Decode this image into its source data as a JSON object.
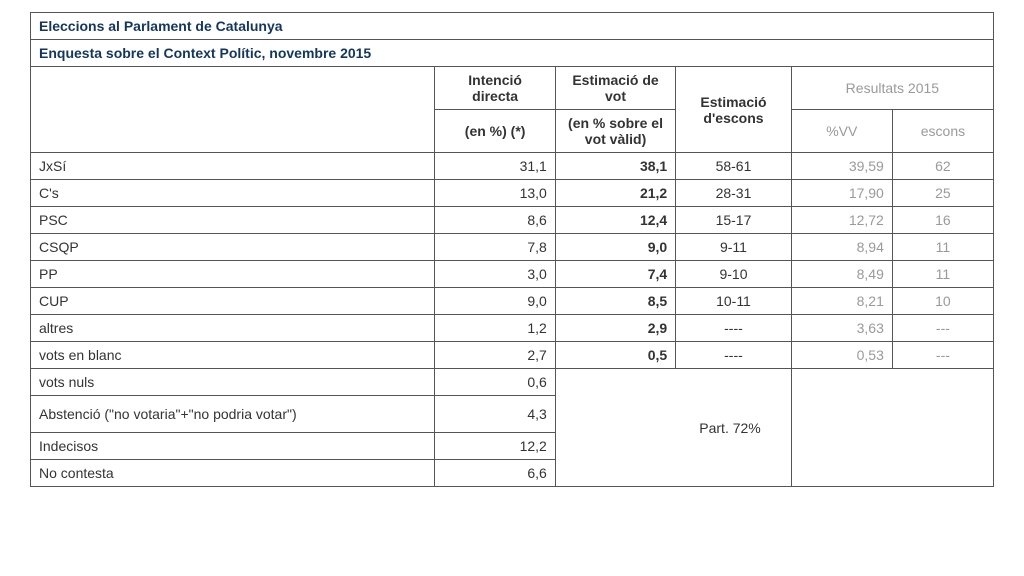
{
  "title1": "Eleccions al Parlament de Catalunya",
  "title2": "Enquesta sobre el Context Polític, novembre 2015",
  "headers": {
    "intencio_top": "Intenció directa",
    "intencio_sub": "(en %)  (*)",
    "estimacio_top": "Estimació de vot",
    "estimacio_sub": "(en % sobre el vot vàlid)",
    "escons": "Estimació d'escons",
    "resultats": "Resultats 2015",
    "vv": "%VV",
    "res_escons": "escons"
  },
  "rows": [
    {
      "party": "JxSí",
      "dir": "31,1",
      "est": "38,1",
      "esc": "58-61",
      "vv": "39,59",
      "res": "62"
    },
    {
      "party": "C's",
      "dir": "13,0",
      "est": "21,2",
      "esc": "28-31",
      "vv": "17,90",
      "res": "25"
    },
    {
      "party": "PSC",
      "dir": "8,6",
      "est": "12,4",
      "esc": "15-17",
      "vv": "12,72",
      "res": "16"
    },
    {
      "party": "CSQP",
      "dir": "7,8",
      "est": "9,0",
      "esc": "9-11",
      "vv": "8,94",
      "res": "11"
    },
    {
      "party": "PP",
      "dir": "3,0",
      "est": "7,4",
      "esc": "9-10",
      "vv": "8,49",
      "res": "11"
    },
    {
      "party": "CUP",
      "dir": "9,0",
      "est": "8,5",
      "esc": "10-11",
      "vv": "8,21",
      "res": "10"
    },
    {
      "party": "altres",
      "dir": "1,2",
      "est": "2,9",
      "esc": "----",
      "vv": "3,63",
      "res": "---"
    },
    {
      "party": "vots en blanc",
      "dir": "2,7",
      "est": "0,5",
      "esc": "----",
      "vv": "0,53",
      "res": "---"
    }
  ],
  "nuls_label": "vots nuls",
  "nuls_val": "0,6",
  "abst_label": "Abstenció (\"no votaria\"+\"no podria votar\")",
  "abst_val": "4,3",
  "indec_label": "Indecisos",
  "indec_val": "12,2",
  "nocont_label": "No contesta",
  "nocont_val": "6,6",
  "participacio": "Part. 72%",
  "colors": {
    "border": "#555555",
    "title_text": "#14365d",
    "text": "#333333",
    "muted": "#9a9a9a",
    "background": "#ffffff"
  },
  "type": "table"
}
